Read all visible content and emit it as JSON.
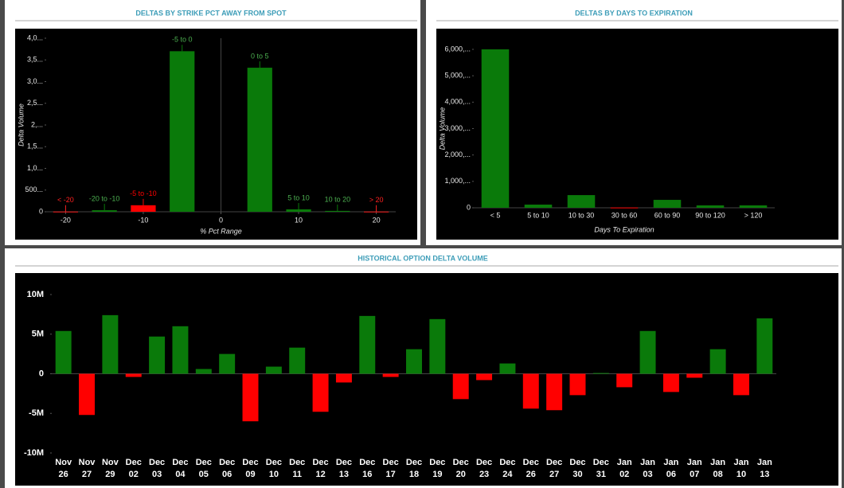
{
  "chart_data": [
    {
      "type": "bar",
      "title": "DELTAS BY STRIKE PCT AWAY FROM SPOT",
      "y_label": "Delta Volume",
      "x_label": "% Pct Range",
      "categories": [
        "< -20",
        "-20 to -10",
        "-5 to -10",
        "-5 to 0",
        "0 to 5",
        "5 to 10",
        "10 to 20",
        "> 20"
      ],
      "x": [
        -20,
        -15,
        -10,
        -5,
        5,
        10,
        15,
        20
      ],
      "values": [
        5,
        35,
        150,
        3700,
        3320,
        55,
        20,
        5
      ],
      "colors": [
        "#ff2020",
        "#0a7a0a",
        "#ff0000",
        "#0a7a0a",
        "#0a7a0a",
        "#0a7a0a",
        "#0a7a0a",
        "#ff2020"
      ],
      "xlim": [
        -22.5,
        22.5
      ],
      "xticks": [
        -20,
        -10,
        0,
        10,
        20
      ],
      "ylim": [
        0,
        4000
      ],
      "yticks": [
        0,
        {
          "value": 500,
          "label": "500..."
        },
        {
          "value": 1000,
          "label": "1,0..."
        },
        {
          "value": 1500,
          "label": "1,5..."
        },
        {
          "value": 2000,
          "label": "2,..."
        },
        {
          "value": 2500,
          "label": "2,5..."
        },
        {
          "value": 3000,
          "label": "3,0..."
        },
        {
          "value": 3500,
          "label": "3,5..."
        },
        {
          "value": 4000,
          "label": "4,0..."
        }
      ]
    },
    {
      "type": "bar",
      "title": "DELTAS BY DAYS TO EXPIRATION",
      "y_label": "Delta Volume",
      "x_label": "Days To Expiration",
      "categories": [
        "< 5",
        "5 to 10",
        "10 to 30",
        "30 to 60",
        "60 to 90",
        "90 to 120",
        "> 120"
      ],
      "values": [
        6000,
        120,
        480,
        10,
        300,
        90,
        90
      ],
      "colors": [
        "#0a7a0a",
        "#0a7a0a",
        "#0a7a0a",
        "#ff0000",
        "#0a7a0a",
        "#0a7a0a",
        "#0a7a0a"
      ],
      "ylim": [
        0,
        6000
      ],
      "yticks": [
        0,
        {
          "value": 1000,
          "label": "1,000,..."
        },
        {
          "value": 2000,
          "label": "2,000,..."
        },
        {
          "value": 3000,
          "label": "3,000,..."
        },
        {
          "value": 4000,
          "label": "4,000,..."
        },
        {
          "value": 5000,
          "label": "5,000,..."
        },
        {
          "value": 6000,
          "label": "6,000,..."
        }
      ]
    },
    {
      "type": "bar",
      "title": "HISTORICAL OPTION DELTA VOLUME",
      "categories": [
        [
          "Nov",
          "26"
        ],
        [
          "Nov",
          "27"
        ],
        [
          "Nov",
          "29"
        ],
        [
          "Dec",
          "02"
        ],
        [
          "Dec",
          "03"
        ],
        [
          "Dec",
          "04"
        ],
        [
          "Dec",
          "05"
        ],
        [
          "Dec",
          "06"
        ],
        [
          "Dec",
          "09"
        ],
        [
          "Dec",
          "10"
        ],
        [
          "Dec",
          "11"
        ],
        [
          "Dec",
          "12"
        ],
        [
          "Dec",
          "13"
        ],
        [
          "Dec",
          "16"
        ],
        [
          "Dec",
          "17"
        ],
        [
          "Dec",
          "18"
        ],
        [
          "Dec",
          "19"
        ],
        [
          "Dec",
          "20"
        ],
        [
          "Dec",
          "23"
        ],
        [
          "Dec",
          "24"
        ],
        [
          "Dec",
          "26"
        ],
        [
          "Dec",
          "27"
        ],
        [
          "Dec",
          "30"
        ],
        [
          "Dec",
          "31"
        ],
        [
          "Jan",
          "02"
        ],
        [
          "Jan",
          "03"
        ],
        [
          "Jan",
          "06"
        ],
        [
          "Jan",
          "07"
        ],
        [
          "Jan",
          "08"
        ],
        [
          "Jan",
          "10"
        ],
        [
          "Jan",
          "13"
        ]
      ],
      "values": [
        5400000,
        -5200000,
        7400000,
        -400000,
        4700000,
        6000000,
        600000,
        2500000,
        -6000000,
        900000,
        3300000,
        -4800000,
        -1100000,
        7300000,
        -400000,
        3100000,
        6900000,
        -3200000,
        -800000,
        1300000,
        -4400000,
        -4600000,
        -2700000,
        100000,
        -1700000,
        5400000,
        -2300000,
        -500000,
        3100000,
        -2700000,
        7000000
      ],
      "positive_color": "#0a7a0a",
      "negative_color": "#ff0000",
      "ylim": [
        -10000000,
        10000000
      ],
      "yticks": [
        {
          "value": -10000000,
          "label": "-10M"
        },
        {
          "value": -5000000,
          "label": "-5M"
        },
        0,
        {
          "value": 5000000,
          "label": "5M"
        },
        {
          "value": 10000000,
          "label": "10M"
        }
      ]
    }
  ]
}
